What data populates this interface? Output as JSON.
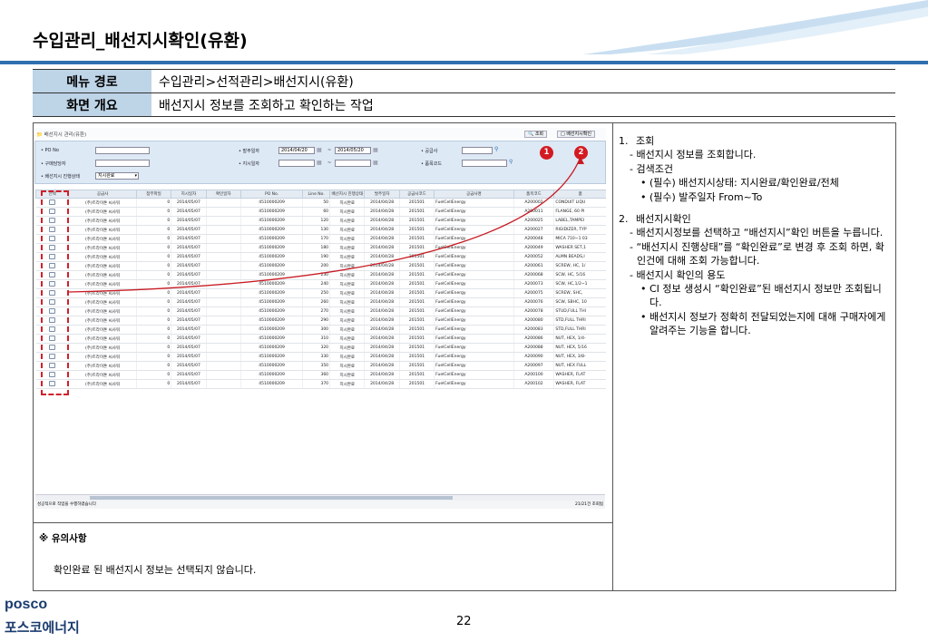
{
  "page": {
    "title": "수입관리_배선지시확인(유환)",
    "page_number": "22"
  },
  "meta": {
    "menu_label": "메뉴 경로",
    "menu_value": "수입관리>선적관리>배선지시(유환)",
    "summary_label": "화면 개요",
    "summary_value": "배선지시 정보를 조회하고 확인하는 작업"
  },
  "screen": {
    "tab": "배선지시 관리(유환)",
    "btn_search": "조회",
    "btn_confirm": "배선지시확인",
    "badge1": "1",
    "badge2": "2",
    "search": {
      "po_label": "PO No",
      "buyer_label": "구매담당자",
      "status_label": "배선지시 진행상태",
      "status_value": "지시완료",
      "order_date_label": "발주일자",
      "date_from": "2014/04/20",
      "tilde1": "~",
      "date_to": "2014/05/20",
      "instr_date_label": "지시일자",
      "tilde2": "~",
      "supplier_label": "공급사",
      "item_label": "품목코드"
    },
    "columns": [
      "선택",
      "공급사",
      "첨부파일",
      "지시일자",
      "확인일자",
      "PO No.",
      "Line No.",
      "배선지시 진행상태",
      "발주일자",
      "공급사코드",
      "공급사명",
      "품목코드",
      "품"
    ],
    "rows": [
      [
        "(주)트라이톤 씨사워",
        "0",
        "2014/05/07",
        "4510000209",
        "50",
        "지시완료",
        "2014/04/28",
        "201501",
        "FuelCellEnergy",
        "A200002",
        "CONDUIT LIQU"
      ],
      [
        "(주)트라이톤 씨사워",
        "0",
        "2014/05/07",
        "4510000209",
        "60",
        "지시완료",
        "2014/04/28",
        "201501",
        "FuelCellEnergy",
        "A200011",
        "FLANGE, 60 PI"
      ],
      [
        "(주)트라이톤 씨사워",
        "0",
        "2014/05/07",
        "4510000209",
        "120",
        "지시완료",
        "2014/04/28",
        "201501",
        "FuelCellEnergy",
        "A200025",
        "LABEL,TAMPEI"
      ],
      [
        "(주)트라이톤 씨사워",
        "0",
        "2014/05/07",
        "4510000209",
        "130",
        "지시완료",
        "2014/04/28",
        "201501",
        "FuelCellEnergy",
        "A200027",
        "RIGIDIZER, TYP"
      ],
      [
        "(주)트라이톤 씨사워",
        "0",
        "2014/05/07",
        "4510000209",
        "170",
        "지시완료",
        "2014/04/28",
        "201501",
        "FuelCellEnergy",
        "A200048",
        "MICA 710~1 03"
      ],
      [
        "(주)트라이톤 씨사워",
        "0",
        "2014/05/07",
        "4510000209",
        "180",
        "지시완료",
        "2014/04/28",
        "201501",
        "FuelCellEnergy",
        "A200049",
        "WASHER SET,1"
      ],
      [
        "(주)트라이톤 씨사워",
        "0",
        "2014/05/07",
        "4510000209",
        "190",
        "지시완료",
        "2014/04/28",
        "201501",
        "FuelCellEnergy",
        "A200052",
        "ALMN BEADS,I"
      ],
      [
        "(주)트라이톤 씨사워",
        "0",
        "2014/05/07",
        "4510000209",
        "200",
        "지시완료",
        "2014/04/28",
        "201501",
        "FuelCellEnergy",
        "A200061",
        "SCREW, HC, 1/"
      ],
      [
        "(주)트라이톤 씨사워",
        "0",
        "2014/05/07",
        "4510000209",
        "230",
        "지시완료",
        "2014/04/28",
        "201501",
        "FuelCellEnergy",
        "A200068",
        "SCW, HC, 5/16"
      ],
      [
        "(주)트라이톤 씨사워",
        "0",
        "2014/05/07",
        "4510000209",
        "240",
        "지시완료",
        "2014/04/28",
        "201501",
        "FuelCellEnergy",
        "A200073",
        "SCW, HC,1/2~1"
      ],
      [
        "(주)트라이톤 씨사워",
        "0",
        "2014/05/07",
        "4510000209",
        "250",
        "지시완료",
        "2014/04/28",
        "201501",
        "FuelCellEnergy",
        "A200075",
        "SCREW, SHC,"
      ],
      [
        "(주)트라이톤 씨사워",
        "0",
        "2014/05/07",
        "4510000209",
        "260",
        "지시완료",
        "2014/04/28",
        "201501",
        "FuelCellEnergy",
        "A200076",
        "SCW, SBHC, 10"
      ],
      [
        "(주)트라이톤 씨사워",
        "0",
        "2014/05/07",
        "4510000209",
        "270",
        "지시완료",
        "2014/04/28",
        "201501",
        "FuelCellEnergy",
        "A200078",
        "STUD,FULL THI"
      ],
      [
        "(주)트라이톤 씨사워",
        "0",
        "2014/05/07",
        "4510000209",
        "290",
        "지시완료",
        "2014/04/28",
        "201501",
        "FuelCellEnergy",
        "A200080",
        "STD,FULL THRI"
      ],
      [
        "(주)트라이톤 씨사워",
        "0",
        "2014/05/07",
        "4510000209",
        "300",
        "지시완료",
        "2014/04/28",
        "201501",
        "FuelCellEnergy",
        "A200083",
        "STD,FULL THRI"
      ],
      [
        "(주)트라이톤 씨사워",
        "0",
        "2014/05/07",
        "4510000209",
        "310",
        "지시완료",
        "2014/04/28",
        "201501",
        "FuelCellEnergy",
        "A200086",
        "NUT, HEX, 1/4-"
      ],
      [
        "(주)트라이톤 씨사워",
        "0",
        "2014/05/07",
        "4510000209",
        "320",
        "지시완료",
        "2014/04/28",
        "201501",
        "FuelCellEnergy",
        "A200088",
        "NUT, HEX, 5/16"
      ],
      [
        "(주)트라이톤 씨사워",
        "0",
        "2014/05/07",
        "4510000209",
        "330",
        "지시완료",
        "2014/04/28",
        "201501",
        "FuelCellEnergy",
        "A200090",
        "NUT, HEX, 3/8-"
      ],
      [
        "(주)트라이톤 씨사워",
        "0",
        "2014/05/07",
        "4510000209",
        "350",
        "지시완료",
        "2014/04/28",
        "201501",
        "FuelCellEnergy",
        "A200097",
        "NUT, HEX FULL"
      ],
      [
        "(주)트라이톤 씨사워",
        "0",
        "2014/05/07",
        "4510000209",
        "360",
        "지시완료",
        "2014/04/28",
        "201501",
        "FuelCellEnergy",
        "A200100",
        "WASHER, FLAT"
      ],
      [
        "(주)트라이톤 씨사워",
        "0",
        "2014/05/07",
        "4510000209",
        "370",
        "지시완료",
        "2014/04/28",
        "201501",
        "FuelCellEnergy",
        "A200102",
        "WASHER, FLAT"
      ]
    ],
    "status_message": "성공적으로 작업을 수행하였습니다",
    "count": "21/21건 조회됨"
  },
  "notice": {
    "heading": "※ 유의사항",
    "text": "확인완료 된 배선지시 정보는 선택되지 않습니다."
  },
  "description": {
    "s1_num": "1.",
    "s1_title": "조회",
    "s1_l1": "- 배선지시 정보를 조회합니다.",
    "s1_l2": "- 검색조건",
    "s1_l3": "• (필수) 배선지시상태: 지시완료/확인완료/전체",
    "s1_l4": "• (필수) 발주일자 From~To",
    "s2_num": "2.",
    "s2_title": "배선지시확인",
    "s2_l1": "- 배선지시정보를 선택하고 “배선지시”확인 버튼을 누릅니다.",
    "s2_l2": "- “배선지시 진행상태”를 “확인완료”로 변경 후 조회 하면, 확인건에 대해 조회 가능합니다.",
    "s2_l3": "- 배선지시 확인의 용도",
    "s2_l4": "• CI 정보 생성시 “확인완료”된 배선지시 정보만 조회됩니다.",
    "s2_l5": "• 배선지시 정보가 정확히 전달되었는지에 대해 구매자에게 알려주는 기능을 합니다."
  },
  "footer": {
    "logo_en": "posco",
    "logo_ko": "포스코에너지"
  },
  "colors": {
    "accent_blue": "#2f6fb0",
    "header_cell": "#bed4e7",
    "marker_red": "#d31a22"
  }
}
